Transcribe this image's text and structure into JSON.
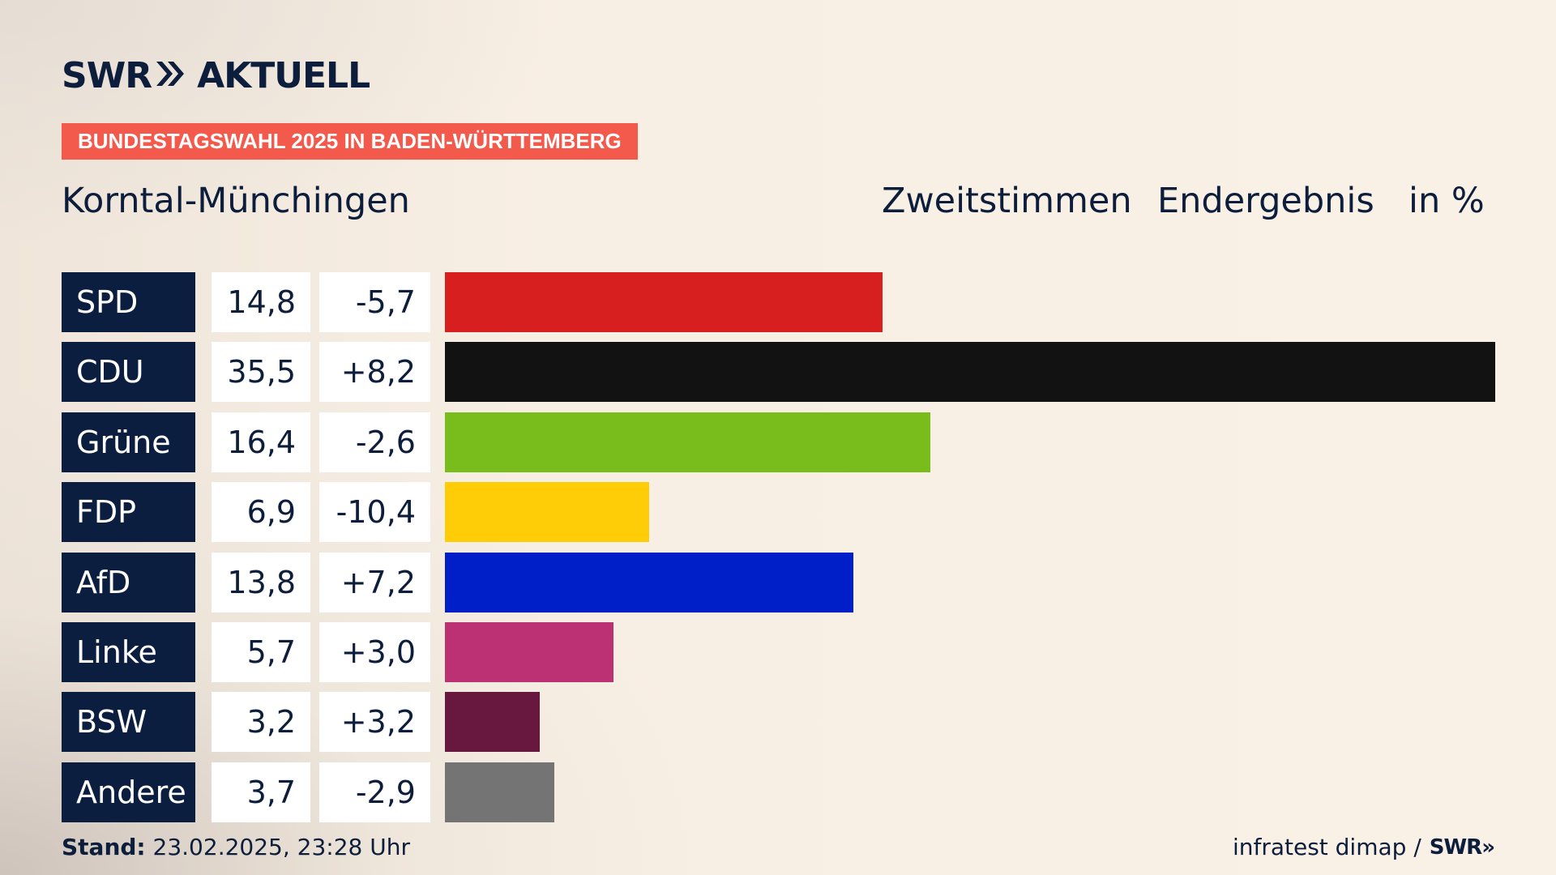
{
  "brand": {
    "name": "SWR",
    "suffix": "AKTUELL",
    "chevrons": "»"
  },
  "tag": "BUNDESTAGSWAHL 2025 IN BADEN-WÜRTTEMBERG",
  "place": "Korntal-Münchingen",
  "headers": {
    "vote_type": "Zweitstimmen",
    "status": "Endergebnis",
    "unit": "in %"
  },
  "chart_data": {
    "type": "bar",
    "orientation": "horizontal",
    "title": "Korntal-Münchingen",
    "categories": [
      "SPD",
      "CDU",
      "Grüne",
      "FDP",
      "AfD",
      "Linke",
      "BSW",
      "Andere"
    ],
    "values": [
      14.8,
      35.5,
      16.4,
      6.9,
      13.8,
      5.7,
      3.2,
      3.7
    ],
    "value_labels": [
      "14,8",
      "35,5",
      "16,4",
      "6,9",
      "13,8",
      "5,7",
      "3,2",
      "3,7"
    ],
    "changes": [
      -5.7,
      8.2,
      -2.6,
      -10.4,
      7.2,
      3.0,
      3.2,
      -2.9
    ],
    "change_labels": [
      "-5,7",
      "+8,2",
      "-2,6",
      "-10,4",
      "+7,2",
      "+3,0",
      "+3,2",
      "-2,9"
    ],
    "colors": [
      "#d81f1f",
      "#121212",
      "#79bd1c",
      "#ffcd08",
      "#001fc9",
      "#bc3174",
      "#68173e",
      "#747474"
    ],
    "grid": false
  },
  "footer": {
    "stand_label": "Stand:",
    "stand_value": "23.02.2025, 23:28 Uhr",
    "source": "infratest dimap /",
    "source_brand": "SWR»"
  }
}
